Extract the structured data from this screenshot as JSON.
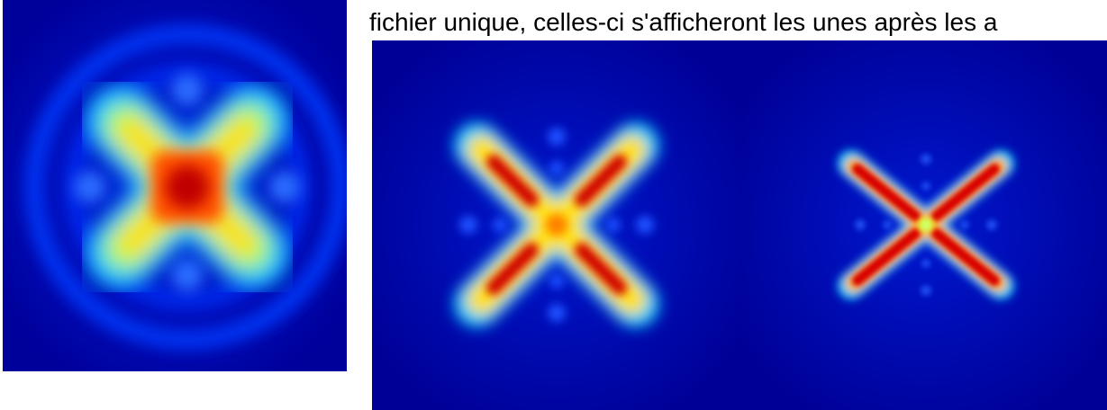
{
  "text": {
    "line": "fichier unique, celles-ci s'afficheront les unes après les a"
  }
}
